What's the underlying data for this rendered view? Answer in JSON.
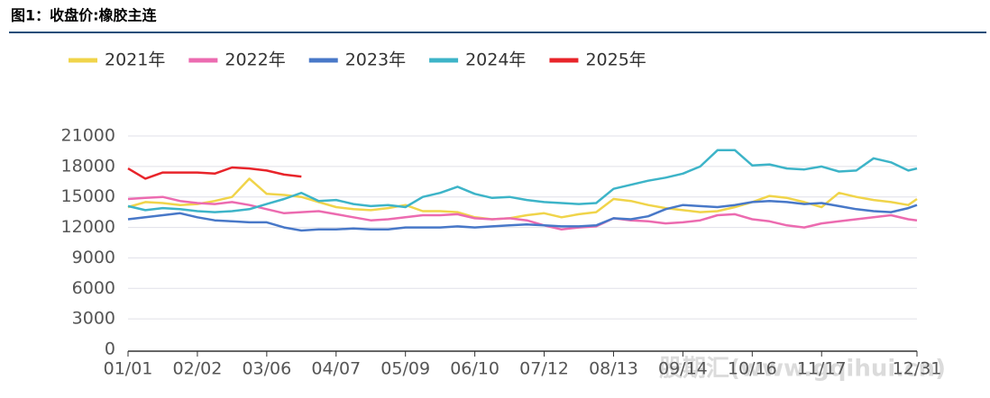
{
  "header": {
    "title": "图1：收盘价:橡胶主连"
  },
  "watermark": "股期汇(www.gqihui.cn)",
  "chart_data": {
    "type": "line",
    "x": [
      0,
      8,
      16,
      24,
      32,
      40,
      48,
      56,
      64,
      72,
      80,
      88,
      96,
      104,
      112,
      120,
      128,
      136,
      144,
      152,
      160,
      168,
      176,
      184,
      192,
      200,
      208,
      216,
      224,
      232,
      240,
      248,
      256,
      264,
      272,
      280,
      288,
      296,
      304,
      312,
      320,
      328,
      336,
      344,
      352,
      360,
      364
    ],
    "xlim": [
      0,
      364
    ],
    "xticks": [
      {
        "value": 0,
        "label": "01/01"
      },
      {
        "value": 32,
        "label": "02/02"
      },
      {
        "value": 64,
        "label": "03/06"
      },
      {
        "value": 96,
        "label": "04/07"
      },
      {
        "value": 128,
        "label": "05/09"
      },
      {
        "value": 160,
        "label": "06/10"
      },
      {
        "value": 192,
        "label": "07/12"
      },
      {
        "value": 224,
        "label": "08/13"
      },
      {
        "value": 256,
        "label": "09/14"
      },
      {
        "value": 288,
        "label": "10/16"
      },
      {
        "value": 320,
        "label": "11/17"
      },
      {
        "value": 364,
        "label": "12/31"
      }
    ],
    "ylim": [
      0,
      21000
    ],
    "yticks": [
      0,
      3000,
      6000,
      9000,
      12000,
      15000,
      18000,
      21000
    ],
    "grid": true,
    "legend": "top",
    "series": [
      {
        "name": "2021年",
        "color": "#f0d44a",
        "values": [
          14000,
          14500,
          14400,
          14200,
          14300,
          14600,
          15000,
          16800,
          15300,
          15200,
          15000,
          14500,
          14000,
          13800,
          13700,
          13900,
          14200,
          13600,
          13600,
          13500,
          13000,
          12800,
          12900,
          13200,
          13400,
          13000,
          13300,
          13500,
          14800,
          14600,
          14200,
          13900,
          13700,
          13500,
          13600,
          14000,
          14500,
          15100,
          14900,
          14500,
          14000,
          15400,
          15000,
          14700,
          14500,
          14200,
          14800
        ]
      },
      {
        "name": "2022年",
        "color": "#ec6bb0",
        "values": [
          14800,
          14900,
          15000,
          14600,
          14400,
          14300,
          14500,
          14200,
          13800,
          13400,
          13500,
          13600,
          13300,
          13000,
          12700,
          12800,
          13000,
          13200,
          13200,
          13300,
          12900,
          12800,
          12900,
          12700,
          12200,
          11800,
          12000,
          12100,
          12900,
          12700,
          12600,
          12400,
          12500,
          12700,
          13200,
          13300,
          12800,
          12600,
          12200,
          12000,
          12400,
          12600,
          12800,
          13000,
          13200,
          12800,
          12700
        ]
      },
      {
        "name": "2023年",
        "color": "#4878c8",
        "values": [
          12800,
          13000,
          13200,
          13400,
          13000,
          12700,
          12600,
          12500,
          12500,
          12000,
          11700,
          11800,
          11800,
          11900,
          11800,
          11800,
          12000,
          12000,
          12000,
          12100,
          12000,
          12100,
          12200,
          12300,
          12200,
          12100,
          12100,
          12200,
          12900,
          12800,
          13100,
          13800,
          14200,
          14100,
          14000,
          14200,
          14500,
          14600,
          14500,
          14300,
          14400,
          14100,
          13800,
          13600,
          13500,
          13900,
          14200
        ]
      },
      {
        "name": "2024年",
        "color": "#3db4c8",
        "values": [
          14100,
          13700,
          13900,
          13800,
          13600,
          13500,
          13600,
          13800,
          14300,
          14800,
          15400,
          14600,
          14700,
          14300,
          14100,
          14200,
          14000,
          15000,
          15400,
          16000,
          15300,
          14900,
          15000,
          14700,
          14500,
          14400,
          14300,
          14400,
          15800,
          16200,
          16600,
          16900,
          17300,
          18000,
          19600,
          19600,
          18100,
          18200,
          17800,
          17700,
          18000,
          17500,
          17600,
          18800,
          18400,
          17600,
          17800
        ]
      },
      {
        "name": "2025年",
        "color": "#e8242a",
        "values": [
          17800,
          16800,
          17400,
          17400,
          17400,
          17300,
          17900,
          17800,
          17600,
          17200,
          17000,
          null,
          null,
          null,
          null,
          null,
          null,
          null,
          null,
          null,
          null,
          null,
          null,
          null,
          null,
          null,
          null,
          null,
          null,
          null,
          null,
          null,
          null,
          null,
          null,
          null,
          null,
          null,
          null,
          null,
          null,
          null,
          null,
          null,
          null,
          null,
          null
        ]
      }
    ]
  }
}
